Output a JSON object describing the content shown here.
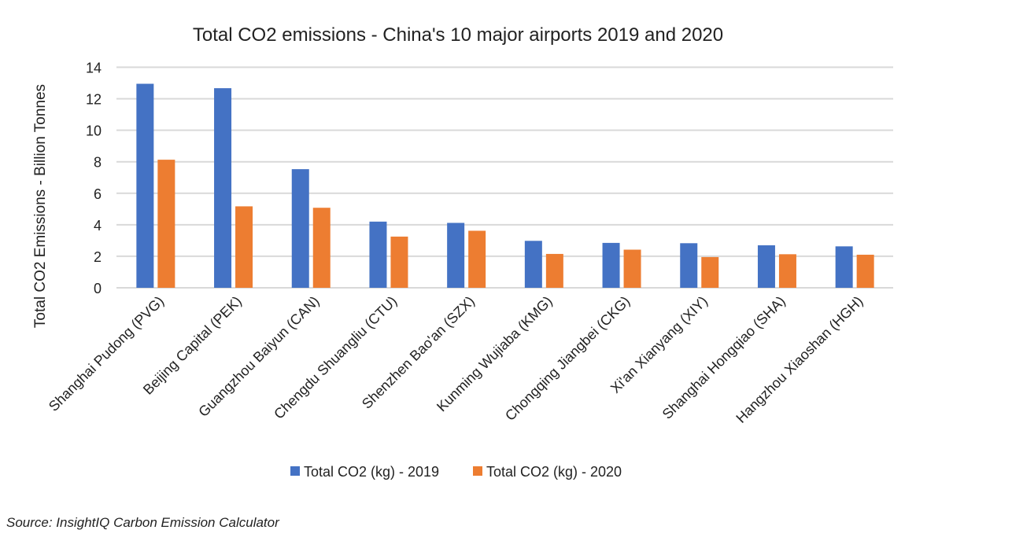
{
  "chart_data": {
    "type": "bar",
    "title": "Total CO2 emissions - China's 10 major airports 2019 and 2020",
    "xlabel": "",
    "ylabel": "Total CO2 Emissions - Billion Tonnes",
    "ylim": [
      0,
      14
    ],
    "yticks": [
      0,
      2,
      4,
      6,
      8,
      10,
      12,
      14
    ],
    "grid": true,
    "legend_position": "bottom",
    "categories": [
      "Shanghai Pudong (PVG)",
      "Beijing Capital (PEK)",
      "Guangzhou Baiyun (CAN)",
      "Chengdu Shuangliu (CTU)",
      "Shenzhen Bao'an (SZX)",
      "Kunming Wujiaba (KMG)",
      "Chongqing Jiangbei (CKG)",
      "Xi'an Xianyang  (XIY)",
      "Shanghai Hongqiao (SHA)",
      "Hangzhou Xiaoshan (HGH)"
    ],
    "series": [
      {
        "name": "Total CO2 (kg) - 2019",
        "color": "#4472C4",
        "values": [
          12.95,
          12.67,
          7.53,
          4.2,
          4.12,
          2.98,
          2.85,
          2.83,
          2.7,
          2.63
        ]
      },
      {
        "name": "Total CO2 (kg) - 2020",
        "color": "#ED7D31",
        "values": [
          8.13,
          5.17,
          5.08,
          3.25,
          3.62,
          2.15,
          2.42,
          1.95,
          2.13,
          2.1
        ]
      }
    ]
  },
  "source": "Source: InsightIQ Carbon Emission Calculator"
}
